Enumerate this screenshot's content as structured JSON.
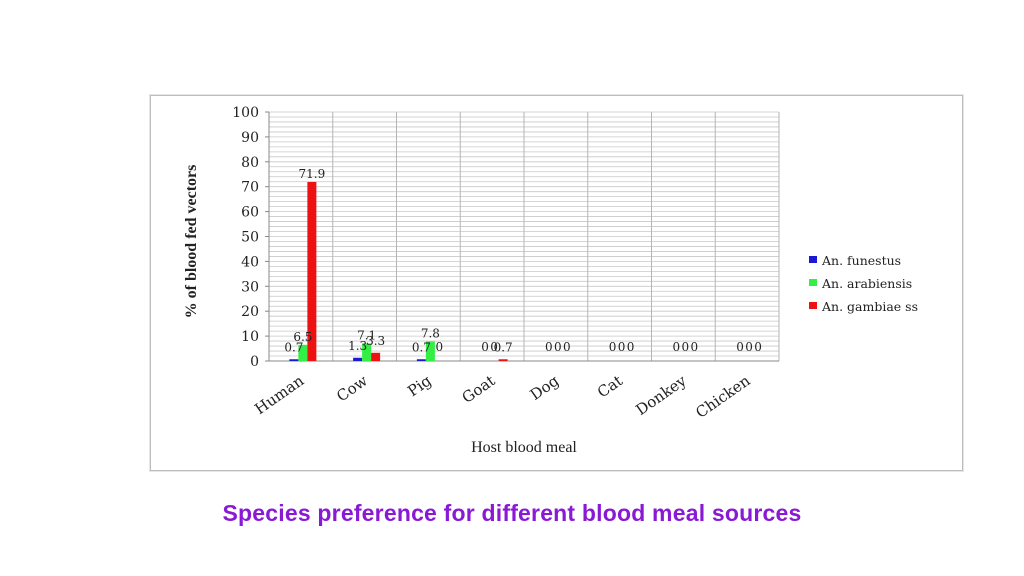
{
  "caption": "Species preference for different blood meal sources",
  "caption_color": "#8a19d6",
  "chart_data": {
    "type": "bar",
    "title": "",
    "xlabel": "Host blood meal",
    "ylabel": "% of blood fed vectors",
    "ylim": [
      0,
      100
    ],
    "yticks": [
      0,
      10,
      20,
      30,
      40,
      50,
      60,
      70,
      80,
      90,
      100
    ],
    "grid": true,
    "legend_position": "right",
    "categories": [
      "Human",
      "Cow",
      "Pig",
      "Goat",
      "Dog",
      "Cat",
      "Donkey",
      "Chicken"
    ],
    "series": [
      {
        "name": "An. funestus",
        "color": "#1a1ad6",
        "values": [
          0.7,
          1.3,
          0.7,
          0,
          0,
          0,
          0,
          0
        ],
        "labels": [
          "0.7",
          "1.3",
          "0.7",
          "0",
          "0",
          "0",
          "0",
          "0"
        ]
      },
      {
        "name": "An. arabiensis",
        "color": "#33ee44",
        "values": [
          6.5,
          7.1,
          7.8,
          0,
          0,
          0,
          0,
          0
        ],
        "labels": [
          "6.5",
          "7.1",
          "7.8",
          "0",
          "0",
          "0",
          "0",
          "0"
        ]
      },
      {
        "name": "An. gambiae ss",
        "color": "#ee1111",
        "values": [
          71.9,
          3.3,
          0,
          0.7,
          0,
          0,
          0,
          0
        ],
        "labels": [
          "71.9",
          "3.3",
          "0",
          "0.7",
          "0",
          "0",
          "0",
          "0"
        ]
      }
    ]
  }
}
